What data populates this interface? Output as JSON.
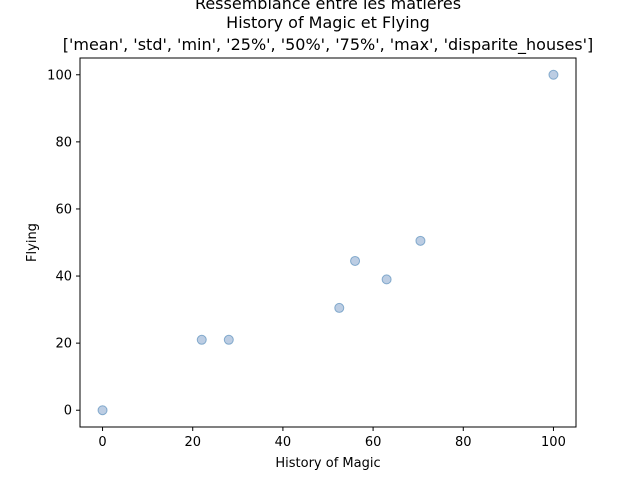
{
  "chart_data": {
    "type": "scatter",
    "title_lines": [
      "Ressemblance entre les matières",
      "History of Magic et Flying",
      "['mean', 'std', 'min', '25%', '50%', '75%', 'max', 'disparite_houses']"
    ],
    "xlabel": "History of Magic",
    "ylabel": "Flying",
    "xlim": [
      -5,
      105
    ],
    "ylim": [
      -5,
      105
    ],
    "xticks": [
      0,
      20,
      40,
      60,
      80,
      100
    ],
    "yticks": [
      0,
      20,
      40,
      60,
      80,
      100
    ],
    "grid": false,
    "points": [
      {
        "x": 0,
        "y": 0
      },
      {
        "x": 22,
        "y": 21
      },
      {
        "x": 28,
        "y": 21
      },
      {
        "x": 52.5,
        "y": 30.5
      },
      {
        "x": 56,
        "y": 44.5
      },
      {
        "x": 63,
        "y": 39
      },
      {
        "x": 70.5,
        "y": 50.5
      },
      {
        "x": 100,
        "y": 100
      }
    ],
    "marker_fill": "#b0c4de",
    "marker_edge": "#4682b4"
  }
}
